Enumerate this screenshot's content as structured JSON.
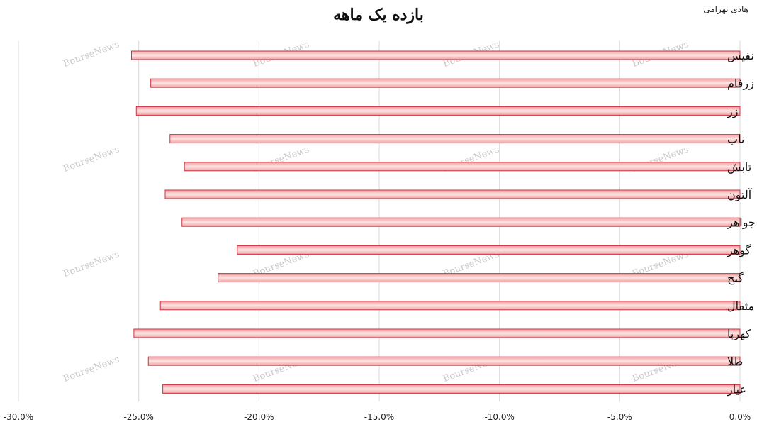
{
  "chart_data": {
    "type": "bar",
    "orientation": "horizontal",
    "title": "بازده یک ماهه",
    "author": "هادی بهرامی",
    "watermark": "BourseNews",
    "categories": [
      "نفیس",
      "زرفام",
      "زر",
      "ناب",
      "تابش",
      "آلتون",
      "جواهر",
      "گوهر",
      "گنج",
      "مثقال",
      "کهربا",
      "طلا",
      "عیار"
    ],
    "values": [
      -25.3,
      -24.5,
      -25.1,
      -23.7,
      -23.1,
      -23.9,
      -23.2,
      -20.9,
      -21.7,
      -24.1,
      -25.2,
      -24.6,
      -24.0
    ],
    "xlim": [
      -30,
      0
    ],
    "xticks": [
      "-30.0%",
      "-25.0%",
      "-20.0%",
      "-15.0%",
      "-10.0%",
      "-5.0%",
      "0.0%"
    ],
    "grid": true,
    "legend": "none",
    "colors": {
      "bar_fill_start": "#f0a0a0",
      "bar_fill_end": "#fde4e4",
      "bar_stroke": "#cc3344",
      "grid": "#d9d9d9",
      "watermark": "#c8c8c8"
    }
  }
}
